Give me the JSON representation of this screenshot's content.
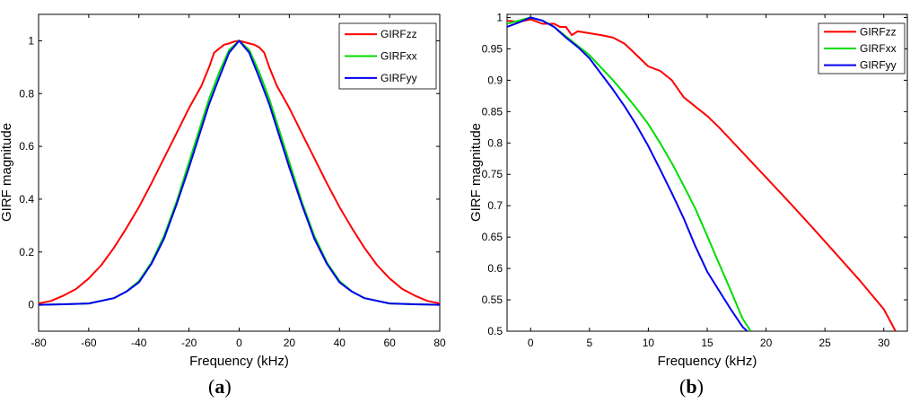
{
  "chart_data": [
    {
      "id": "a",
      "type": "line",
      "panel_label_open": "(",
      "panel_label_letter": "a",
      "panel_label_close": ")",
      "xlabel": "Frequency (kHz)",
      "ylabel": "GIRF magnitude",
      "xlim": [
        -80,
        80
      ],
      "ylim": [
        -0.1,
        1.1
      ],
      "xticks": [
        -80,
        -60,
        -40,
        -20,
        0,
        20,
        40,
        60,
        80
      ],
      "yticks": [
        0,
        0.2,
        0.4,
        0.6,
        0.8,
        1
      ],
      "ytick_labels": [
        "0",
        "0.2",
        "0.4",
        "0.6",
        "0.8",
        "1"
      ],
      "grid": false,
      "legend_position": "top-right",
      "series": [
        {
          "name": "GIRFzz",
          "color": "#ff0000",
          "x": [
            -80,
            -75,
            -70,
            -65,
            -60,
            -55,
            -50,
            -45,
            -40,
            -35,
            -30,
            -25,
            -20,
            -15,
            -12,
            -10,
            -8,
            -6,
            -4,
            -2,
            0,
            2,
            4,
            6,
            8,
            10,
            12,
            15,
            20,
            25,
            30,
            35,
            40,
            45,
            50,
            55,
            60,
            65,
            70,
            75,
            80
          ],
          "y": [
            0.005,
            0.015,
            0.035,
            0.06,
            0.1,
            0.15,
            0.215,
            0.29,
            0.37,
            0.46,
            0.555,
            0.65,
            0.745,
            0.83,
            0.9,
            0.955,
            0.97,
            0.985,
            0.99,
            0.997,
            1.0,
            0.995,
            0.99,
            0.985,
            0.975,
            0.955,
            0.9,
            0.83,
            0.745,
            0.65,
            0.555,
            0.46,
            0.37,
            0.29,
            0.215,
            0.15,
            0.1,
            0.06,
            0.035,
            0.015,
            0.005
          ]
        },
        {
          "name": "GIRFxx",
          "color": "#00dd00",
          "x": [
            -80,
            -70,
            -60,
            -50,
            -45,
            -40,
            -35,
            -30,
            -25,
            -20,
            -16,
            -12,
            -8,
            -4,
            0,
            4,
            8,
            12,
            16,
            20,
            25,
            30,
            35,
            40,
            45,
            50,
            60,
            70,
            80
          ],
          "y": [
            0.0,
            0.002,
            0.005,
            0.025,
            0.05,
            0.09,
            0.16,
            0.26,
            0.39,
            0.54,
            0.66,
            0.78,
            0.88,
            0.965,
            1.0,
            0.965,
            0.88,
            0.78,
            0.66,
            0.54,
            0.39,
            0.26,
            0.16,
            0.09,
            0.05,
            0.025,
            0.005,
            0.002,
            0.0
          ]
        },
        {
          "name": "GIRFyy",
          "color": "#0000ee",
          "x": [
            -80,
            -70,
            -60,
            -50,
            -45,
            -40,
            -35,
            -30,
            -25,
            -20,
            -16,
            -12,
            -8,
            -4,
            0,
            4,
            8,
            12,
            16,
            20,
            25,
            30,
            35,
            40,
            45,
            50,
            60,
            70,
            80
          ],
          "y": [
            0.0,
            0.002,
            0.005,
            0.025,
            0.05,
            0.085,
            0.155,
            0.25,
            0.38,
            0.52,
            0.64,
            0.76,
            0.86,
            0.955,
            1.0,
            0.955,
            0.86,
            0.76,
            0.64,
            0.52,
            0.38,
            0.25,
            0.155,
            0.085,
            0.05,
            0.025,
            0.005,
            0.002,
            0.0
          ]
        }
      ]
    },
    {
      "id": "b",
      "type": "line",
      "panel_label_open": "(",
      "panel_label_letter": "b",
      "panel_label_close": ")",
      "xlabel": "Frequency (kHz)",
      "ylabel": "GIRF magnitude",
      "xlim": [
        -2,
        32
      ],
      "ylim": [
        0.5,
        1.005
      ],
      "xticks": [
        0,
        5,
        10,
        15,
        20,
        25,
        30
      ],
      "yticks": [
        0.5,
        0.55,
        0.6,
        0.65,
        0.7,
        0.75,
        0.8,
        0.85,
        0.9,
        0.95,
        1
      ],
      "ytick_labels": [
        "0.5",
        "0.55",
        "0.6",
        "0.65",
        "0.7",
        "0.75",
        "0.8",
        "0.85",
        "0.9",
        "0.95",
        "1"
      ],
      "grid": false,
      "legend_position": "top-right",
      "series": [
        {
          "name": "GIRFzz",
          "color": "#ff0000",
          "x": [
            -2,
            -1,
            0,
            1,
            2,
            2.5,
            3,
            3.5,
            4,
            5,
            6,
            7,
            8,
            9,
            10,
            11,
            12,
            13,
            14,
            15,
            16,
            18,
            20,
            22,
            24,
            26,
            28,
            30,
            31
          ],
          "y": [
            0.995,
            0.993,
            0.997,
            0.99,
            0.99,
            0.985,
            0.985,
            0.972,
            0.978,
            0.975,
            0.972,
            0.968,
            0.958,
            0.94,
            0.922,
            0.915,
            0.9,
            0.873,
            0.858,
            0.843,
            0.825,
            0.785,
            0.745,
            0.705,
            0.664,
            0.622,
            0.58,
            0.535,
            0.5
          ]
        },
        {
          "name": "GIRFxx",
          "color": "#00dd00",
          "x": [
            -2,
            -1,
            0,
            1,
            2,
            3,
            4,
            5,
            6,
            7,
            8,
            9,
            10,
            11,
            12,
            13,
            14,
            15,
            16,
            17,
            18,
            18.7
          ],
          "y": [
            0.99,
            0.995,
            1.0,
            0.995,
            0.985,
            0.97,
            0.955,
            0.94,
            0.92,
            0.9,
            0.878,
            0.855,
            0.83,
            0.8,
            0.768,
            0.732,
            0.695,
            0.652,
            0.608,
            0.565,
            0.52,
            0.5
          ]
        },
        {
          "name": "GIRFyy",
          "color": "#0000ee",
          "x": [
            -2,
            -1,
            0,
            1,
            2,
            3,
            4,
            5,
            6,
            7,
            8,
            9,
            10,
            11,
            12,
            13,
            14,
            15,
            16,
            17,
            18,
            18.4
          ],
          "y": [
            0.985,
            0.992,
            1.0,
            0.995,
            0.985,
            0.968,
            0.953,
            0.935,
            0.91,
            0.885,
            0.858,
            0.828,
            0.795,
            0.758,
            0.72,
            0.68,
            0.635,
            0.595,
            0.565,
            0.535,
            0.507,
            0.5
          ]
        }
      ]
    }
  ]
}
